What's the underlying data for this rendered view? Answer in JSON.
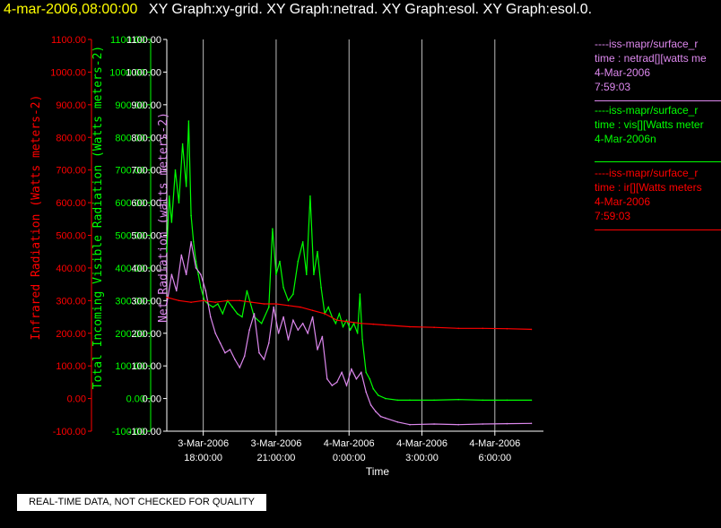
{
  "header": {
    "date_time": "4-mar-2006,08:00:00",
    "graphs": "XY Graph:xy-grid.  XY Graph:netrad.  XY Graph:esol.  XY Graph:esol.0."
  },
  "legend": [
    {
      "color": "#dd88ee",
      "lines": [
        "----iss-mapr/surface_r",
        "time : netrad[][watts me",
        "4-Mar-2006",
        "7:59:03"
      ]
    },
    {
      "color": "#00ff00",
      "lines": [
        "----iss-mapr/surface_r",
        "time : vis[][Watts meter",
        "4-Mar-2006n"
      ]
    },
    {
      "color": "#ff0000",
      "lines": [
        "----iss-mapr/surface_r",
        "time : ir[][Watts meters",
        "4-Mar-2006",
        "7:59:03"
      ]
    }
  ],
  "footer_note": "REAL-TIME DATA, NOT CHECKED FOR QUALITY",
  "colors": {
    "infrared": "#ff0000",
    "visible": "#00ff00",
    "netrad": "#dd88ee",
    "axis_text": "#ffffff",
    "date_text": "#ffff00"
  },
  "chart_data": {
    "type": "line",
    "x_unit": "hours since 3-Mar-2006 16:30",
    "xlabel": "Time",
    "xlim": [
      "3-Mar-2006 16:30",
      "4-Mar-2006 08:00"
    ],
    "xticks": [
      {
        "t": 1.5,
        "line1": "3-Mar-2006",
        "line2": "18:00:00"
      },
      {
        "t": 4.5,
        "line1": "3-Mar-2006",
        "line2": "21:00:00"
      },
      {
        "t": 7.5,
        "line1": "4-Mar-2006",
        "line2": "0:00:00"
      },
      {
        "t": 10.5,
        "line1": "4-Mar-2006",
        "line2": "3:00:00"
      },
      {
        "t": 13.5,
        "line1": "4-Mar-2006",
        "line2": "6:00:00"
      }
    ],
    "yticks": [
      "1100.00",
      "1000.00",
      "900.00",
      "800.00",
      "700.00",
      "600.00",
      "500.00",
      "400.00",
      "300.00",
      "200.00",
      "100.00",
      "0.00",
      "-100.00"
    ],
    "ylim": [
      -100,
      1100
    ],
    "grid_verticals": true,
    "axes": [
      {
        "name": "infrared",
        "label": "Infrared Radiation (Watts meters-2)",
        "color": "#ff0000"
      },
      {
        "name": "visible",
        "label": "Total Incoming Visible Radiation (Watts meters-2)",
        "color": "#00ff00"
      },
      {
        "name": "netrad",
        "label": "Net Radiation (watts meters-2)",
        "color": "#dd88ee"
      }
    ],
    "series": [
      {
        "key": "visible",
        "color": "#00ff00",
        "t": [
          0.0,
          0.1,
          0.2,
          0.35,
          0.5,
          0.65,
          0.8,
          0.9,
          1.0,
          1.1,
          1.2,
          1.3,
          1.4,
          1.55,
          1.7,
          1.9,
          2.1,
          2.3,
          2.5,
          2.7,
          2.9,
          3.1,
          3.3,
          3.6,
          3.9,
          4.2,
          4.35,
          4.5,
          4.65,
          4.8,
          5.0,
          5.2,
          5.4,
          5.6,
          5.75,
          5.9,
          6.05,
          6.2,
          6.35,
          6.5,
          6.65,
          6.8,
          6.95,
          7.1,
          7.25,
          7.4,
          7.55,
          7.7,
          7.85,
          7.95,
          8.05,
          8.2,
          8.35,
          8.5,
          8.7,
          9.0,
          9.5,
          10.0,
          11.0,
          12.0,
          13.0,
          14.0,
          15.0
        ],
        "v": [
          450,
          620,
          540,
          700,
          600,
          780,
          650,
          850,
          560,
          480,
          420,
          380,
          340,
          300,
          290,
          280,
          290,
          260,
          300,
          280,
          260,
          250,
          330,
          250,
          230,
          280,
          520,
          380,
          420,
          340,
          300,
          320,
          420,
          480,
          380,
          620,
          380,
          450,
          340,
          260,
          280,
          250,
          230,
          260,
          220,
          240,
          210,
          230,
          200,
          320,
          180,
          80,
          60,
          30,
          10,
          0,
          -5,
          -5,
          -5,
          -3,
          -5,
          -5,
          -5
        ]
      },
      {
        "key": "netrad",
        "color": "#dd88ee",
        "t": [
          0.0,
          0.2,
          0.4,
          0.6,
          0.8,
          1.0,
          1.2,
          1.4,
          1.6,
          1.8,
          2.0,
          2.2,
          2.4,
          2.6,
          2.8,
          3.0,
          3.2,
          3.4,
          3.6,
          3.8,
          4.0,
          4.2,
          4.4,
          4.6,
          4.8,
          5.0,
          5.2,
          5.4,
          5.6,
          5.8,
          6.0,
          6.2,
          6.4,
          6.6,
          6.8,
          7.0,
          7.2,
          7.4,
          7.6,
          7.8,
          8.0,
          8.2,
          8.4,
          8.6,
          8.8,
          9.0,
          9.5,
          10.0,
          11.0,
          12.0,
          13.0,
          14.0,
          15.0
        ],
        "v": [
          290,
          380,
          330,
          440,
          380,
          480,
          400,
          380,
          330,
          250,
          200,
          170,
          140,
          150,
          120,
          95,
          130,
          210,
          260,
          140,
          120,
          170,
          280,
          200,
          250,
          180,
          240,
          210,
          230,
          200,
          250,
          150,
          190,
          60,
          40,
          50,
          80,
          40,
          90,
          60,
          80,
          20,
          -20,
          -40,
          -55,
          -60,
          -72,
          -80,
          -78,
          -80,
          -78,
          -77,
          -76
        ]
      },
      {
        "key": "infrared",
        "color": "#ff0000",
        "t": [
          0.0,
          0.5,
          1.0,
          1.5,
          2.0,
          2.5,
          3.0,
          3.5,
          4.0,
          4.5,
          5.0,
          5.5,
          6.0,
          6.5,
          7.0,
          7.5,
          8.0,
          8.5,
          9.0,
          10.0,
          11.0,
          12.0,
          13.0,
          14.0,
          15.0
        ],
        "v": [
          310,
          300,
          295,
          300,
          295,
          300,
          300,
          295,
          290,
          290,
          285,
          280,
          270,
          260,
          240,
          235,
          230,
          228,
          225,
          220,
          218,
          215,
          215,
          214,
          212
        ]
      }
    ]
  }
}
